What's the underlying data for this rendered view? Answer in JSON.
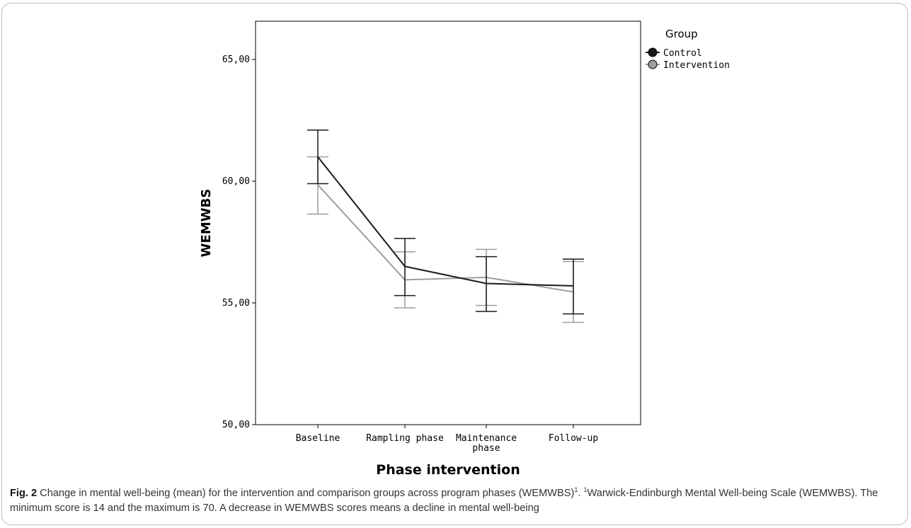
{
  "chart_data": {
    "type": "line",
    "xlabel": "Phase intervention",
    "ylabel": "WEMWBS",
    "ylim": [
      50,
      67
    ],
    "yticks": [
      50,
      55,
      60,
      65
    ],
    "ytick_labels": [
      "50,00",
      "55,00",
      "60,00",
      "65,00"
    ],
    "categories": [
      [
        "Baseline"
      ],
      [
        "Rampling phase"
      ],
      [
        "Maintenance",
        "phase"
      ],
      [
        "Follow-up"
      ]
    ],
    "legend": {
      "title": "Group",
      "position": "top-right"
    },
    "series": [
      {
        "name": "Control",
        "color": "#1a1a1a",
        "values": [
          61.0,
          56.5,
          55.8,
          55.7
        ],
        "ci_low": [
          59.9,
          55.3,
          54.65,
          54.55
        ],
        "ci_high": [
          62.1,
          57.65,
          56.9,
          56.8
        ]
      },
      {
        "name": "Intervention",
        "color": "#9e9e9e",
        "values": [
          59.85,
          55.95,
          56.05,
          55.45
        ],
        "ci_low": [
          58.65,
          54.8,
          54.9,
          54.2
        ],
        "ci_high": [
          61.0,
          57.1,
          57.2,
          56.7
        ]
      }
    ],
    "grid": false
  },
  "caption": {
    "figure_label": "Fig. 2",
    "text_part1": " Change in mental well-being (mean) for the intervention and comparison groups across program phases (WEMWBS)",
    "sup1": "1",
    "text_part2": ". ",
    "sup2": "1",
    "text_part3": "Warwick-Endinburgh Mental Well-being Scale (WEMWBS). The minimum score is 14 and the maximum is 70. A decrease in WEMWBS scores means a decline in mental well-being"
  }
}
